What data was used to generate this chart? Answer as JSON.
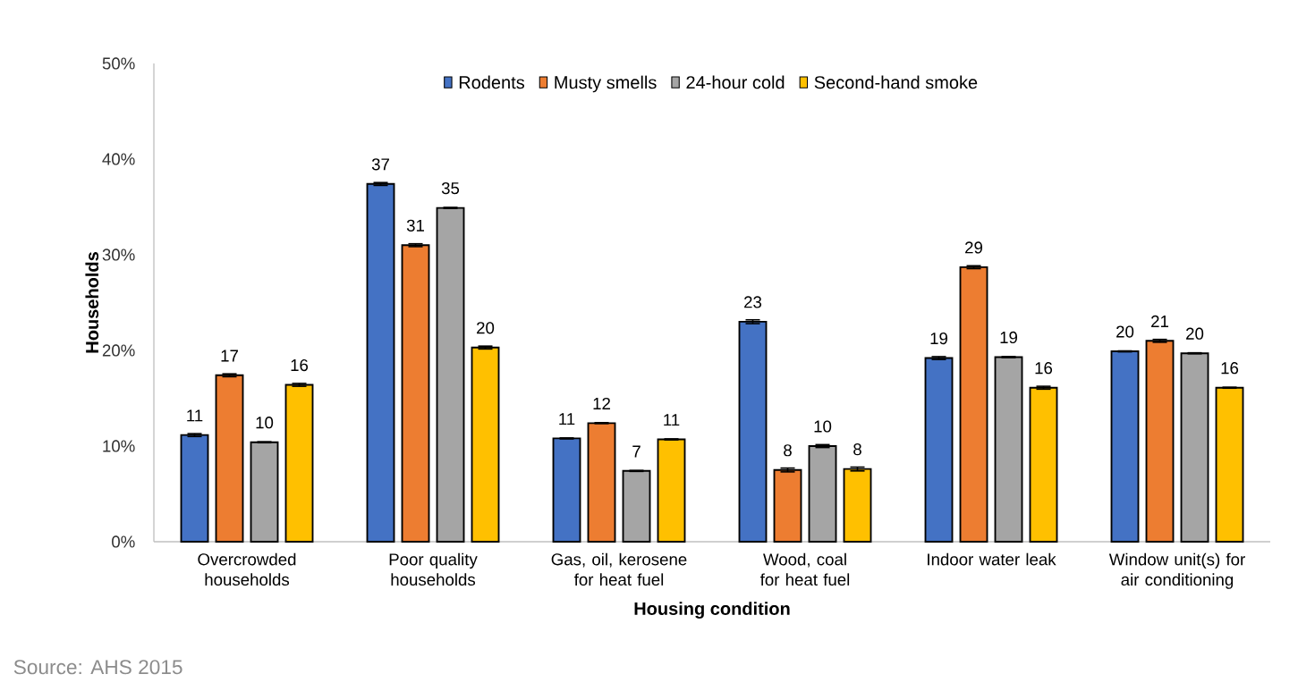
{
  "chart_data": {
    "type": "bar",
    "categories": [
      "Overcrowded households",
      "Poor quality households",
      "Gas, oil, kerosene for heat fuel",
      "Wood, coal for heat fuel",
      "Indoor water leak",
      "Window unit(s) for air conditioning"
    ],
    "series": [
      {
        "name": "Rodents",
        "color": "#4472c4",
        "values": [
          11.15,
          37.4,
          10.8,
          23.0,
          19.2,
          19.9
        ],
        "errors": [
          0.15,
          0.15,
          0.05,
          0.2,
          0.15,
          0.05
        ],
        "value_labels": [
          "11",
          "37",
          "11",
          "23",
          "19",
          "20"
        ]
      },
      {
        "name": "Musty smells",
        "color": "#ed7d31",
        "values": [
          17.4,
          31.0,
          12.4,
          7.5,
          28.7,
          21.0
        ],
        "errors": [
          0.15,
          0.15,
          0.05,
          0.2,
          0.15,
          0.15
        ],
        "value_labels": [
          "17",
          "31",
          "12",
          "8",
          "29",
          "21"
        ]
      },
      {
        "name": "24-hour cold",
        "color": "#a5a5a5",
        "values": [
          10.4,
          34.9,
          7.4,
          10.0,
          19.3,
          19.7
        ],
        "errors": [
          0.05,
          0.05,
          0.05,
          0.15,
          0.05,
          0.05
        ],
        "value_labels": [
          "10",
          "35",
          "7",
          "10",
          "19",
          "20"
        ]
      },
      {
        "name": "Second-hand smoke",
        "color": "#ffc000",
        "values": [
          16.4,
          20.3,
          10.7,
          7.6,
          16.1,
          16.1
        ],
        "errors": [
          0.15,
          0.15,
          0.05,
          0.2,
          0.15,
          0.05
        ],
        "value_labels": [
          "16",
          "20",
          "11",
          "8",
          "16",
          "16"
        ]
      }
    ],
    "ylim": [
      0,
      50
    ],
    "yticks": [
      {
        "value": 0,
        "label": "0%"
      },
      {
        "value": 10,
        "label": "10%"
      },
      {
        "value": 20,
        "label": "20%"
      },
      {
        "value": 30,
        "label": "30%"
      },
      {
        "value": 40,
        "label": "40%"
      },
      {
        "value": 50,
        "label": "50%"
      }
    ],
    "xlabel": "Housing condition",
    "ylabel": "Households",
    "legend": "top",
    "annotations": [
      "Source: AHS 2015"
    ]
  }
}
